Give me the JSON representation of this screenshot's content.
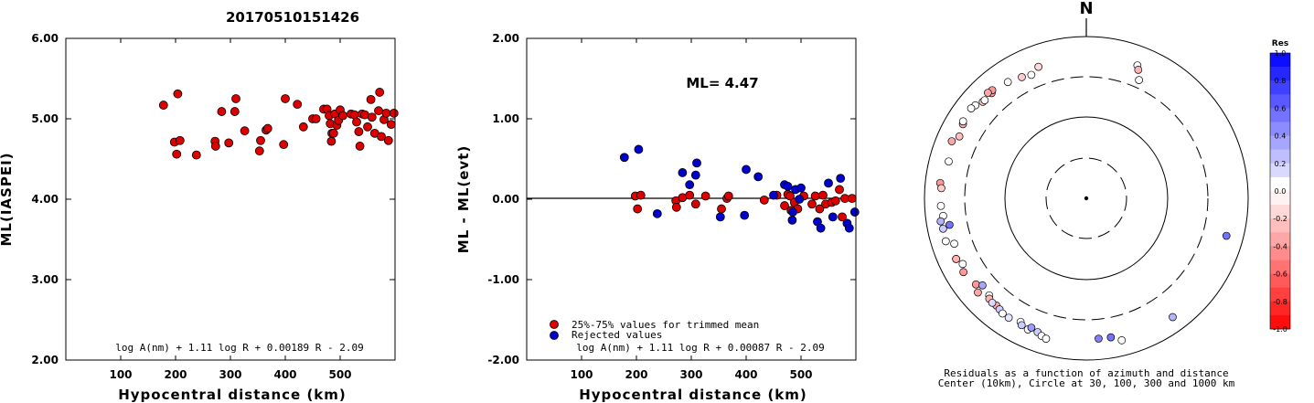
{
  "figure_title": "20170510151426",
  "chart_data": [
    {
      "type": "scatter",
      "xlabel": "Hypocentral distance (km)",
      "ylabel": "ML(IASPEI)",
      "xlim": [
        0,
        600
      ],
      "ylim": [
        2.0,
        6.0
      ],
      "xticks": [
        "100",
        "200",
        "300",
        "400",
        "500"
      ],
      "yticks": [
        "2.00",
        "3.00",
        "4.00",
        "5.00",
        "6.00"
      ],
      "formula": "log A(nm) + 1.11 log R + 0.00189 R - 2.09",
      "color": "#dd0000",
      "points": [
        [
          178,
          5.17
        ],
        [
          198,
          4.71
        ],
        [
          202,
          4.56
        ],
        [
          204,
          5.31
        ],
        [
          208,
          4.73
        ],
        [
          238,
          4.55
        ],
        [
          272,
          4.72
        ],
        [
          273,
          4.66
        ],
        [
          284,
          5.09
        ],
        [
          297,
          4.7
        ],
        [
          308,
          5.09
        ],
        [
          310,
          5.25
        ],
        [
          326,
          4.85
        ],
        [
          353,
          4.6
        ],
        [
          355,
          4.73
        ],
        [
          365,
          4.86
        ],
        [
          368,
          4.88
        ],
        [
          397,
          4.68
        ],
        [
          400,
          5.25
        ],
        [
          422,
          5.18
        ],
        [
          433,
          4.9
        ],
        [
          450,
          5.0
        ],
        [
          456,
          5.0
        ],
        [
          470,
          5.12
        ],
        [
          476,
          5.12
        ],
        [
          480,
          5.04
        ],
        [
          482,
          4.94
        ],
        [
          484,
          4.72
        ],
        [
          485,
          4.82
        ],
        [
          488,
          4.82
        ],
        [
          490,
          5.06
        ],
        [
          494,
          4.92
        ],
        [
          497,
          4.98
        ],
        [
          500,
          5.11
        ],
        [
          505,
          5.04
        ],
        [
          520,
          5.06
        ],
        [
          526,
          5.05
        ],
        [
          530,
          4.96
        ],
        [
          534,
          4.84
        ],
        [
          536,
          4.66
        ],
        [
          540,
          5.06
        ],
        [
          545,
          5.05
        ],
        [
          550,
          4.9
        ],
        [
          556,
          5.24
        ],
        [
          558,
          5.02
        ],
        [
          563,
          4.82
        ],
        [
          570,
          5.1
        ],
        [
          572,
          5.33
        ],
        [
          575,
          4.78
        ],
        [
          580,
          4.99
        ],
        [
          584,
          5.07
        ],
        [
          588,
          4.73
        ],
        [
          593,
          4.93
        ],
        [
          598,
          5.07
        ]
      ]
    },
    {
      "type": "scatter",
      "xlabel": "Hypocentral distance (km)",
      "ylabel": "ML - ML(evt)",
      "xlim": [
        0,
        600
      ],
      "ylim": [
        -2.0,
        2.0
      ],
      "xticks": [
        "100",
        "200",
        "300",
        "400",
        "500"
      ],
      "yticks": [
        "-2.00",
        "-1.00",
        "0.00",
        "1.00",
        "2.00"
      ],
      "annotation": "ML= 4.47",
      "formula": "log A(nm) + 1.11 log R + 0.00087 R - 2.09",
      "legend": [
        {
          "label": "25%-75% values for trimmed mean",
          "color": "#dd0000"
        },
        {
          "label": "Rejected values",
          "color": "#0000cc"
        }
      ],
      "series": [
        {
          "color": "#dd0000",
          "points": [
            [
              198,
              0.04
            ],
            [
              202,
              -0.12
            ],
            [
              208,
              0.05
            ],
            [
              272,
              -0.02
            ],
            [
              273,
              -0.1
            ],
            [
              284,
              0.02
            ],
            [
              297,
              0.05
            ],
            [
              308,
              -0.06
            ],
            [
              326,
              0.04
            ],
            [
              355,
              -0.12
            ],
            [
              365,
              0.01
            ],
            [
              368,
              0.04
            ],
            [
              433,
              -0.01
            ],
            [
              456,
              0.05
            ],
            [
              470,
              -0.08
            ],
            [
              476,
              0.06
            ],
            [
              480,
              0.04
            ],
            [
              482,
              -0.14
            ],
            [
              488,
              -0.04
            ],
            [
              494,
              -0.12
            ],
            [
              505,
              0.04
            ],
            [
              520,
              -0.06
            ],
            [
              526,
              0.04
            ],
            [
              534,
              -0.12
            ],
            [
              540,
              0.05
            ],
            [
              545,
              -0.06
            ],
            [
              556,
              -0.04
            ],
            [
              563,
              -0.02
            ],
            [
              570,
              0.12
            ],
            [
              575,
              -0.22
            ],
            [
              580,
              0.01
            ],
            [
              593,
              0.01
            ]
          ]
        },
        {
          "color": "#0000cc",
          "points": [
            [
              178,
              0.52
            ],
            [
              204,
              0.62
            ],
            [
              238,
              -0.18
            ],
            [
              284,
              0.33
            ],
            [
              297,
              0.18
            ],
            [
              308,
              0.3
            ],
            [
              310,
              0.45
            ],
            [
              353,
              -0.22
            ],
            [
              397,
              -0.2
            ],
            [
              400,
              0.37
            ],
            [
              422,
              0.28
            ],
            [
              450,
              0.05
            ],
            [
              470,
              0.18
            ],
            [
              476,
              0.16
            ],
            [
              484,
              -0.26
            ],
            [
              485,
              -0.16
            ],
            [
              490,
              0.12
            ],
            [
              497,
              0.0
            ],
            [
              500,
              0.14
            ],
            [
              530,
              -0.28
            ],
            [
              536,
              -0.36
            ],
            [
              550,
              0.2
            ],
            [
              558,
              -0.22
            ],
            [
              572,
              0.26
            ],
            [
              584,
              -0.3
            ],
            [
              588,
              -0.36
            ],
            [
              598,
              -0.16
            ]
          ]
        }
      ]
    },
    {
      "type": "scatter",
      "subtype": "polar residual map",
      "north_label": "N",
      "caption_line1": "Residuals as a function of azimuth and distance",
      "caption_line2": "Center (10km), Circle at 30, 100, 300 and 1000 km",
      "colorbar_title": "Res",
      "colorbar_ticks": [
        "1.0",
        "0.8",
        "0.6",
        "0.4",
        "0.2",
        "0.0",
        "-0.2",
        "-0.4",
        "-0.6",
        "-0.8",
        "-1.0"
      ],
      "colorbar_range": [
        -1.0,
        1.0
      ],
      "points": [
        {
          "azimuth": 21,
          "distance": 560,
          "residual": 0.0
        },
        {
          "azimuth": 22,
          "distance": 500,
          "residual": -0.3
        },
        {
          "azimuth": 332,
          "distance": 480,
          "residual": -0.2
        },
        {
          "azimuth": 336,
          "distance": 450,
          "residual": 0.0
        },
        {
          "azimuth": 326,
          "distance": 525,
          "residual": 0.0
        },
        {
          "azimuth": 318,
          "distance": 545,
          "residual": -0.4
        },
        {
          "azimuth": 319,
          "distance": 575,
          "residual": -0.4
        },
        {
          "azimuth": 317,
          "distance": 592,
          "residual": -0.35
        },
        {
          "azimuth": 313,
          "distance": 545,
          "residual": -0.2
        },
        {
          "azimuth": 314,
          "distance": 540,
          "residual": 0.0
        },
        {
          "azimuth": 310,
          "distance": 600,
          "residual": 0.0
        },
        {
          "azimuth": 308,
          "distance": 625,
          "residual": 0.0
        },
        {
          "azimuth": 301,
          "distance": 585,
          "residual": -0.35
        },
        {
          "azimuth": 302,
          "distance": 610,
          "residual": 0.0
        },
        {
          "azimuth": 296,
          "distance": 540,
          "residual": -0.25
        },
        {
          "azimuth": 293,
          "distance": 625,
          "residual": -0.35
        },
        {
          "azimuth": 285,
          "distance": 560,
          "residual": 0.0
        },
        {
          "azimuth": 276,
          "distance": 640,
          "residual": -0.4
        },
        {
          "azimuth": 274,
          "distance": 610,
          "residual": -0.2
        },
        {
          "azimuth": 267,
          "distance": 615,
          "residual": 0.0
        },
        {
          "azimuth": 263,
          "distance": 590,
          "residual": 0.0
        },
        {
          "azimuth": 261,
          "distance": 650,
          "residual": 0.3
        },
        {
          "azimuth": 258,
          "distance": 630,
          "residual": 0.2
        },
        {
          "azimuth": 259,
          "distance": 510,
          "residual": 0.55
        },
        {
          "azimuth": 253,
          "distance": 640,
          "residual": 0.0
        },
        {
          "azimuth": 251,
          "distance": 515,
          "residual": 0.0
        },
        {
          "azimuth": 245,
          "distance": 580,
          "residual": 0.0
        },
        {
          "azimuth": 245,
          "distance": 580,
          "residual": -0.3
        },
        {
          "azimuth": 242,
          "distance": 520,
          "residual": 0.0
        },
        {
          "azimuth": 239,
          "distance": 575,
          "residual": -0.4
        },
        {
          "azimuth": 232,
          "distance": 520,
          "residual": -0.4
        },
        {
          "azimuth": 230,
          "distance": 455,
          "residual": 0.35
        },
        {
          "azimuth": 229,
          "distance": 580,
          "residual": -0.35
        },
        {
          "azimuth": 225,
          "distance": 480,
          "residual": 0.0
        },
        {
          "azimuth": 224,
          "distance": 515,
          "residual": -0.3
        },
        {
          "azimuth": 220,
          "distance": 520,
          "residual": -0.35
        },
        {
          "azimuth": 222,
          "distance": 530,
          "residual": 0.15
        },
        {
          "azimuth": 218,
          "distance": 535,
          "residual": 0.2
        },
        {
          "azimuth": 216,
          "distance": 560,
          "residual": 0.0
        },
        {
          "azimuth": 213,
          "distance": 560,
          "residual": 0.1
        },
        {
          "azimuth": 208,
          "distance": 520,
          "residual": 0.0
        },
        {
          "azimuth": 207,
          "distance": 560,
          "residual": 0.2
        },
        {
          "azimuth": 204,
          "distance": 580,
          "residual": 0.0
        },
        {
          "azimuth": 203,
          "distance": 530,
          "residual": 0.4
        },
        {
          "azimuth": 200,
          "distance": 560,
          "residual": 0.2
        },
        {
          "azimuth": 198,
          "distance": 600,
          "residual": 0.0
        },
        {
          "azimuth": 196,
          "distance": 625,
          "residual": 0.0
        },
        {
          "azimuth": 175,
          "distance": 535,
          "residual": 0.5
        },
        {
          "azimuth": 170,
          "distance": 540,
          "residual": 0.55
        },
        {
          "azimuth": 166,
          "distance": 630,
          "residual": 0.0
        },
        {
          "azimuth": 144,
          "distance": 640,
          "residual": 0.3
        },
        {
          "azimuth": 105,
          "distance": 605,
          "residual": 0.55
        },
        {
          "azimuth": 340,
          "distance": 520,
          "residual": -0.15
        },
        {
          "azimuth": 24,
          "distance": 380,
          "residual": 0.0
        }
      ]
    }
  ]
}
